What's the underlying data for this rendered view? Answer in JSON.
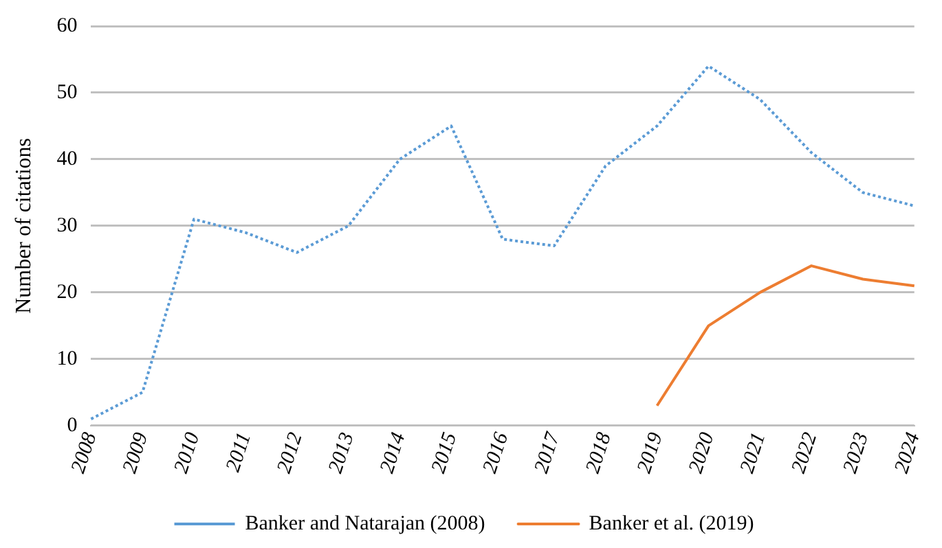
{
  "chart_data": {
    "type": "line",
    "ylabel": "Number of citations",
    "categories": [
      "2008",
      "2009",
      "2010",
      "2011",
      "2012",
      "2013",
      "2014",
      "2015",
      "2016",
      "2017",
      "2018",
      "2019",
      "2020",
      "2021",
      "2022",
      "2023",
      "2024"
    ],
    "series": [
      {
        "name": "Banker and Natarajan (2008)",
        "color": "#5b9bd5",
        "line_style": "dotted",
        "values": [
          1,
          5,
          31,
          29,
          26,
          30,
          40,
          45,
          28,
          27,
          39,
          45,
          54,
          49,
          41,
          35,
          33
        ]
      },
      {
        "name": "Banker et al. (2019)",
        "color": "#ed7d31",
        "line_style": "solid",
        "values": [
          null,
          null,
          null,
          null,
          null,
          null,
          null,
          null,
          null,
          null,
          null,
          3,
          15,
          20,
          24,
          22,
          21
        ]
      }
    ],
    "ylim": [
      0,
      60
    ],
    "yticks": [
      0,
      10,
      20,
      30,
      40,
      50,
      60
    ],
    "grid": "y",
    "legend": "bottom",
    "marker": "none"
  }
}
